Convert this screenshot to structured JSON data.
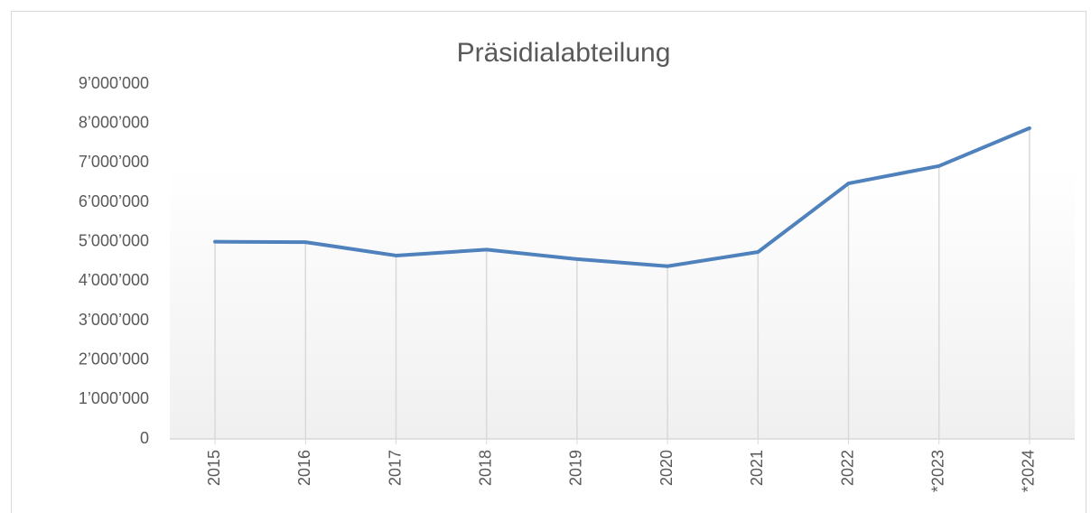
{
  "chart_data": {
    "type": "line",
    "title": "Präsidialabteilung",
    "categories": [
      "2015",
      "2016",
      "2017",
      "2018",
      "2019",
      "2020",
      "2021",
      "2022",
      "*2023",
      "*2024"
    ],
    "series": [
      {
        "name": "Präsidialabteilung",
        "color": "#4f81bd",
        "values": [
          5000000,
          4990000,
          4650000,
          4800000,
          4560000,
          4380000,
          4740000,
          6480000,
          6920000,
          7880000
        ]
      }
    ],
    "ylim": [
      0,
      9000000
    ],
    "yticks": [
      0,
      {
        "value": 1000000,
        "label": "1’000’000"
      },
      {
        "value": 2000000,
        "label": "2’000’000"
      },
      {
        "value": 3000000,
        "label": "3’000’000"
      },
      {
        "value": 4000000,
        "label": "4’000’000"
      },
      {
        "value": 5000000,
        "label": "5’000’000"
      },
      {
        "value": 6000000,
        "label": "6’000’000"
      },
      {
        "value": 7000000,
        "label": "7’000’000"
      },
      {
        "value": 8000000,
        "label": "8’000’000"
      },
      {
        "value": 9000000,
        "label": "9’000’000"
      }
    ],
    "drop_lines": true
  }
}
